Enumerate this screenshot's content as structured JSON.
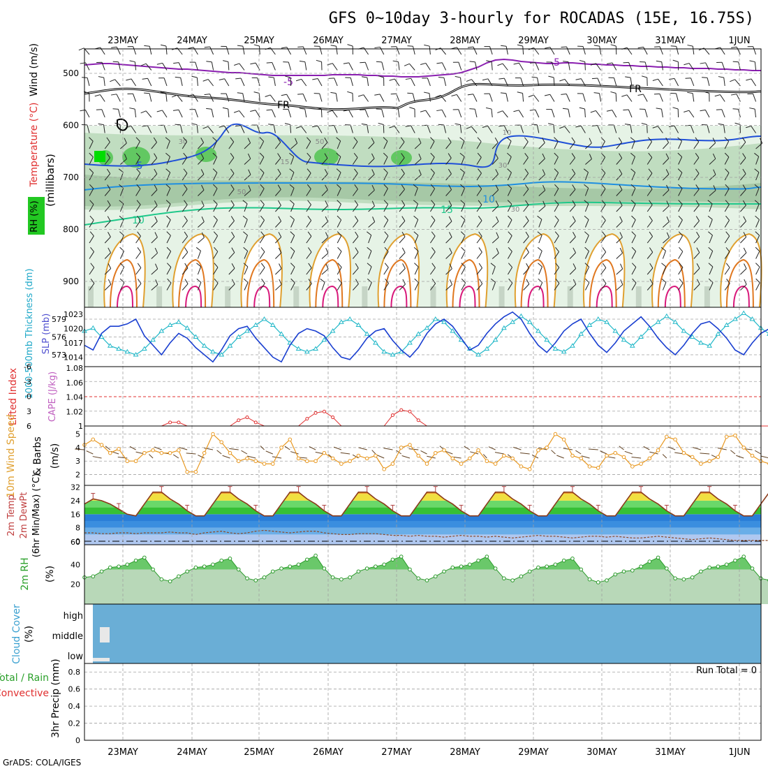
{
  "title": "GFS 0~10day 3-hourly for ROCADAS (15E, 16.75S)",
  "credit": "GrADS: COLA/IGES",
  "colors": {
    "frame": "#000000",
    "grid": "#a0a0a0",
    "purple": "#8a1fb0",
    "blue": "#1f4fd8",
    "cyan": "#1fa8c8",
    "teal": "#1fc88a",
    "orange": "#e0a030",
    "magenta": "#d8187a",
    "rh_light": "#e6f3e6",
    "rh_mid": "#b8d8b8",
    "rh_dark": "#62c862",
    "cloud": "#6aaed6",
    "red": "#e03030",
    "thick_line": "#22b8c8",
    "slp_line": "#1a3fd0",
    "wind_speed": "#e89820",
    "rh2m": "#6ac86a"
  },
  "dates": [
    "23MAY",
    "24MAY",
    "25MAY",
    "26MAY",
    "27MAY",
    "28MAY",
    "29MAY",
    "30MAY",
    "31MAY",
    "1JUN"
  ],
  "chart_data": [
    {
      "type": "line",
      "panel": "upper-air",
      "ylabel": "(millibars)",
      "ylabels_side": [
        "Wind (m/s)",
        "Temperature (°C)",
        "RH (%)"
      ],
      "yticks": [
        500,
        600,
        700,
        800,
        900
      ],
      "ylim": [
        1000,
        450
      ],
      "contour_labels": [
        "-5",
        "-5",
        "FR",
        "FR",
        "5",
        "10",
        "15",
        "10",
        "15",
        "30",
        "30",
        "50",
        "50",
        "10",
        "30"
      ]
    },
    {
      "type": "line",
      "panel": "thickness-slp",
      "ylabels_side": [
        "1000-500mb Thickness (dm)",
        "SLP (mb)"
      ],
      "left_ticks": [
        579,
        576,
        573
      ],
      "right_ticks": [
        1023,
        1020,
        1017,
        1014
      ],
      "series": [
        {
          "name": "SLP (mb)",
          "values": [
            1016.5,
            1015.5,
            1019,
            1020.5,
            1020.5,
            1021,
            1022,
            1018.5,
            1016.5,
            1014.5,
            1017,
            1019,
            1018,
            1016,
            1014.5,
            1013,
            1015.5,
            1018.5,
            1020,
            1020.5,
            1018,
            1016,
            1014,
            1013,
            1016.5,
            1019,
            1020,
            1019.5,
            1018.5,
            1016,
            1014,
            1013.5,
            1015.5,
            1018,
            1019.5,
            1020,
            1017.5,
            1015.5,
            1014,
            1016,
            1019,
            1021,
            1022,
            1020.5,
            1018,
            1015.5,
            1016.5,
            1019,
            1021,
            1022.5,
            1023.5,
            1022,
            1019,
            1016.5,
            1015,
            1017,
            1019.5,
            1021,
            1022,
            1019,
            1016.5,
            1015,
            1017,
            1019.5,
            1021,
            1022.5,
            1020.5,
            1018,
            1016,
            1014.5,
            1016.5,
            1019,
            1021,
            1021.5,
            1020,
            1018,
            1015.5,
            1014.5,
            1017,
            1019,
            1020,
            1019.5,
            1018,
            1019,
            1020.5
          ]
        },
        {
          "name": "1000-500mb Thickness (dm)",
          "values": [
            577,
            577.5,
            576,
            574.5,
            574,
            573.5,
            573,
            574,
            575.5,
            577,
            578,
            578.5,
            577.5,
            576,
            574.5,
            573.5,
            573,
            574.5,
            576,
            577,
            578,
            579,
            578,
            576.5,
            575,
            574,
            573.5,
            574,
            575.5,
            577,
            578.5,
            579,
            578,
            576.5,
            575,
            573.5,
            573,
            573.5,
            575,
            576.5,
            577.5,
            579,
            578.5,
            577,
            575.5,
            574,
            573,
            574,
            575.5,
            577.5,
            578.5,
            579.5,
            578.5,
            577,
            575.5,
            574,
            573.5,
            574.5,
            576.5,
            578,
            579,
            578.5,
            577,
            575.5,
            574.5,
            576,
            577.5,
            578.5,
            579.5,
            578.5,
            577,
            576,
            575,
            574.5,
            576.5,
            578,
            579,
            580,
            579,
            577.5,
            576.5,
            576,
            576.5,
            577,
            576.5
          ]
        }
      ]
    },
    {
      "type": "line",
      "panel": "lifted-index-cape",
      "ylabels_side": [
        "Lifted Index",
        "CAPE (J/kg)"
      ],
      "left_ticks": [
        -6,
        -3,
        0,
        3,
        6
      ],
      "right_ticks": [
        1.08,
        1.06,
        1.04,
        1.02,
        1
      ],
      "series": [
        {
          "name": "CAPE (J/kg)",
          "values": [
            1,
            1,
            1,
            1,
            1,
            1,
            1,
            1,
            1,
            1,
            1.005,
            1.005,
            1,
            1,
            1,
            1,
            1,
            1,
            1.008,
            1.012,
            1.005,
            1,
            1,
            1,
            1,
            1,
            1.01,
            1.018,
            1.02,
            1.012,
            1,
            1,
            1,
            1,
            1,
            1,
            1.015,
            1.022,
            1.02,
            1.008,
            1,
            1,
            1,
            1,
            1,
            1,
            1,
            1,
            1,
            1,
            1,
            1,
            1,
            1,
            1,
            1,
            1,
            1,
            1,
            1,
            1,
            1,
            1,
            1,
            1,
            1,
            1,
            1,
            1,
            1,
            1,
            1,
            1,
            1,
            1,
            1,
            1,
            1,
            1,
            1,
            1,
            1,
            1,
            1,
            1
          ]
        }
      ]
    },
    {
      "type": "line",
      "panel": "wind-10m",
      "ylabels_side": [
        "10m Wind Speed",
        "& Barbs",
        "(m/s)"
      ],
      "yticks": [
        5,
        4,
        3,
        2
      ],
      "series": [
        {
          "name": "Speed",
          "values": [
            4.2,
            4.6,
            4.2,
            3.6,
            3.9,
            3.0,
            3.0,
            3.6,
            3.8,
            3.6,
            3.6,
            3.8,
            2.2,
            2.2,
            3.6,
            5.0,
            4.4,
            3.6,
            3.0,
            3.2,
            3.0,
            2.8,
            2.8,
            4.0,
            4.6,
            3.2,
            3.0,
            3.0,
            3.6,
            3.2,
            2.8,
            3.0,
            3.4,
            3.2,
            3.4,
            2.4,
            2.8,
            4.0,
            4.2,
            3.4,
            2.8,
            3.6,
            3.8,
            3.2,
            2.8,
            3.2,
            3.8,
            3.0,
            2.8,
            3.4,
            3.2,
            2.6,
            2.4,
            3.8,
            4.0,
            5.0,
            4.6,
            3.4,
            3.2,
            2.6,
            2.5,
            3.4,
            3.6,
            3.3,
            2.6,
            2.8,
            3.2,
            3.8,
            4.8,
            4.6,
            3.6,
            3.3,
            2.8,
            3.0,
            3.3,
            4.8,
            4.9,
            4.0,
            3.4,
            3.0,
            2.8,
            3.2,
            3.6,
            4.4,
            3.8,
            3.2,
            3.0,
            1.6,
            2.0,
            2.6
          ]
        }
      ]
    },
    {
      "type": "area",
      "panel": "temp-2m",
      "ylabels_side": [
        "2m Temp",
        "2m DewPt",
        "(6hr Min/Max) (°C)"
      ],
      "yticks": [
        32,
        24,
        16,
        8,
        0
      ],
      "extra_tick": "60",
      "series": [
        {
          "name": "2m Temp",
          "values": [
            22,
            25,
            24,
            22,
            19,
            16,
            15,
            22,
            29,
            29,
            25,
            22,
            18,
            15,
            15,
            22,
            29,
            29,
            25,
            22,
            18,
            15,
            15,
            22,
            29,
            29,
            25,
            22,
            18,
            15,
            15,
            22,
            29,
            29,
            25,
            22,
            18,
            15,
            15,
            22,
            29,
            29,
            25,
            22,
            18,
            15,
            15,
            22,
            29,
            29,
            25,
            22,
            18,
            15,
            15,
            22,
            29,
            29,
            25,
            22,
            18,
            15,
            15,
            22,
            29,
            29,
            25,
            22,
            18,
            15,
            15,
            22,
            29,
            29,
            25,
            22,
            18,
            15,
            15,
            22,
            29,
            29,
            25,
            22,
            18,
            15,
            14,
            13,
            13
          ]
        },
        {
          "name": "2m DewPt",
          "values": [
            5,
            5,
            4.5,
            4.5,
            5,
            5,
            4.5,
            5,
            5,
            5,
            5.5,
            5,
            5,
            4,
            5,
            5.5,
            6,
            5,
            4.5,
            5,
            6,
            6.5,
            6,
            5.5,
            5,
            5.5,
            6,
            6,
            5,
            4.5,
            4,
            4,
            4.5,
            4.5,
            4.5,
            4,
            3.5,
            3.5,
            3,
            3.5,
            3,
            3,
            2.5,
            3,
            3.5,
            3,
            3,
            2.5,
            3,
            2.5,
            2,
            2.5,
            3,
            3.5,
            3,
            3,
            2.5,
            2,
            2.5,
            3,
            3,
            2.5,
            3,
            2.5,
            2,
            2,
            2.5,
            3,
            2.5,
            2,
            1.5,
            1,
            1.5,
            2,
            1.5,
            1,
            0.5,
            0.5,
            0.5,
            0.5,
            0.5,
            0.5,
            0.5
          ]
        }
      ]
    },
    {
      "type": "area",
      "panel": "rh-2m",
      "ylabels_side": [
        "2m RH",
        "(%)"
      ],
      "yticks": [
        40,
        20
      ],
      "series": [
        {
          "name": "2m RH",
          "values": [
            27,
            28,
            33,
            37,
            38,
            40,
            44,
            47,
            35,
            25,
            23,
            28,
            33,
            37,
            38,
            40,
            44,
            46,
            35,
            26,
            24,
            27,
            33,
            36,
            38,
            40,
            45,
            49,
            36,
            27,
            25,
            27,
            33,
            36,
            38,
            40,
            45,
            48,
            35,
            26,
            24,
            28,
            33,
            37,
            38,
            40,
            44,
            48,
            36,
            26,
            24,
            28,
            33,
            37,
            38,
            40,
            44,
            46,
            35,
            25,
            22,
            24,
            30,
            33,
            34,
            38,
            43,
            47,
            36,
            26,
            25,
            27,
            33,
            37,
            38,
            40,
            44,
            48,
            36,
            26,
            24,
            26,
            33,
            37,
            38,
            40,
            44,
            47
          ]
        }
      ]
    },
    {
      "type": "heatmap",
      "panel": "cloud-cover",
      "ylabels_side": [
        "Cloud Cover",
        "(%)"
      ],
      "levels": [
        "high",
        "middle",
        "low"
      ]
    },
    {
      "type": "bar",
      "panel": "precip",
      "ylabels_side": [
        "Total / Rain",
        "Convective",
        "3hr Precip (mm)"
      ],
      "yticks": [
        0,
        0.2,
        0.4,
        0.6,
        0.8
      ],
      "run_total": "Run Total = 0",
      "values": []
    }
  ]
}
